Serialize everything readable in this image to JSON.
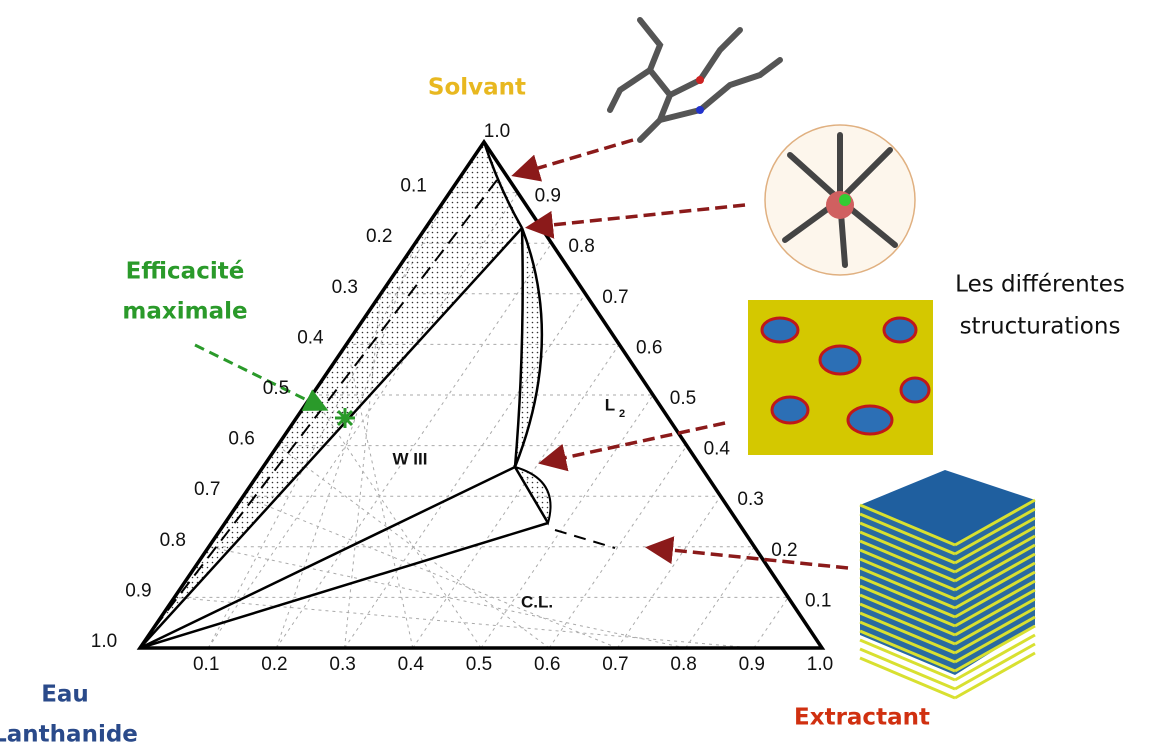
{
  "corners": {
    "top": "Solvant",
    "left": [
      "Eau",
      "Lanthanide"
    ],
    "right": "Extractant"
  },
  "top_tick": "1.0",
  "left_ticks": [
    "0.1",
    "0.2",
    "0.3",
    "0.4",
    "0.5",
    "0.6",
    "0.7",
    "0.8",
    "0.9",
    "1.0"
  ],
  "right_ticks": [
    "0.9",
    "0.8",
    "0.7",
    "0.6",
    "0.5",
    "0.4",
    "0.3",
    "0.2",
    "0.1"
  ],
  "bottom_ticks": [
    "0.1",
    "0.2",
    "0.3",
    "0.4",
    "0.5",
    "0.6",
    "0.7",
    "0.8",
    "0.9",
    "1.0"
  ],
  "regions": {
    "w3": "W III",
    "l2": "L",
    "l2_sub": "2",
    "cl": "C.L."
  },
  "annotation": [
    "Efficacité",
    "maximale"
  ],
  "structures_label": [
    "Les différentes",
    "structurations"
  ]
}
